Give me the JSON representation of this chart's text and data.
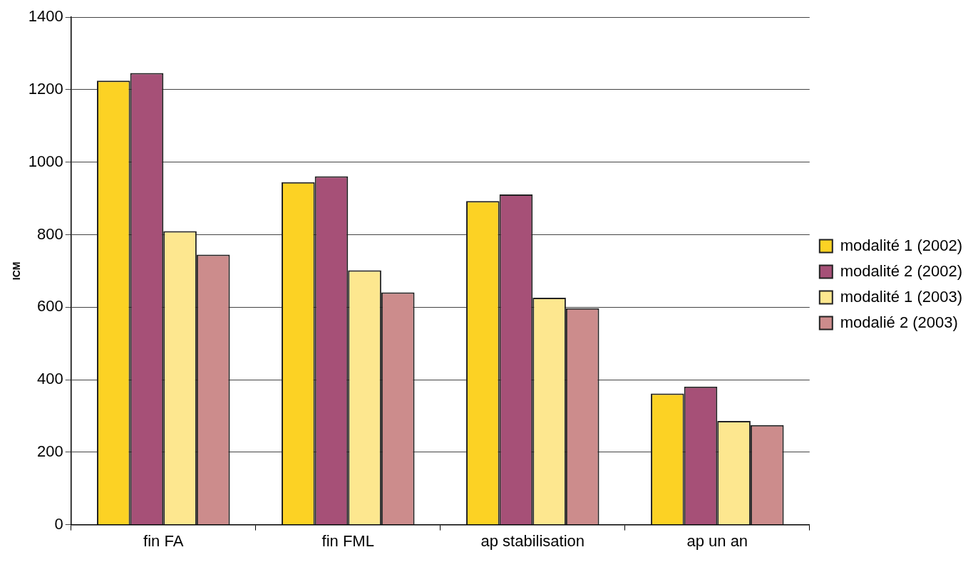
{
  "chart_data": {
    "type": "bar",
    "ylabel": "ICM",
    "categories": [
      "fin FA",
      "fin FML",
      "ap stabilisation",
      "ap un an"
    ],
    "series": [
      {
        "name": "modalité 1 (2002)",
        "color": "#fcd224",
        "values": [
          1225,
          945,
          893,
          362
        ]
      },
      {
        "name": "modalité 2 (2002)",
        "color": "#a65077",
        "values": [
          1246,
          961,
          911,
          381
        ]
      },
      {
        "name": "modalité 1 (2003)",
        "color": "#fde78f",
        "values": [
          810,
          702,
          626,
          286
        ]
      },
      {
        "name": "modalié 2 (2003)",
        "color": "#cc8c8c",
        "values": [
          745,
          641,
          597,
          275
        ]
      }
    ],
    "ylim": [
      0,
      1400
    ],
    "yticks": [
      0,
      200,
      400,
      600,
      800,
      1000,
      1200,
      1400
    ],
    "grid": "y",
    "legend": "right"
  }
}
